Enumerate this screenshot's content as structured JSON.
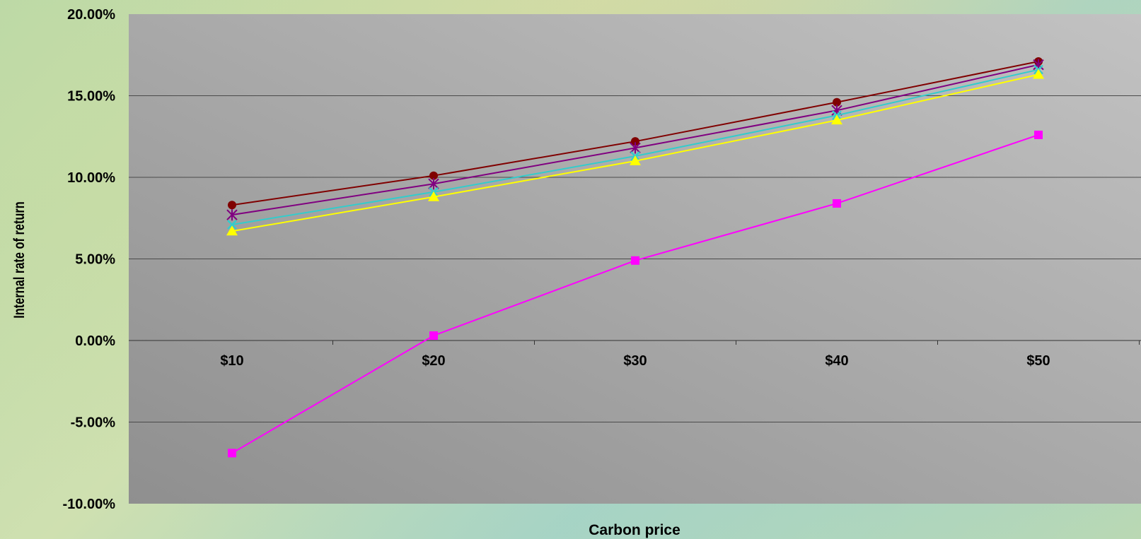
{
  "chart_data": {
    "type": "line",
    "title": "",
    "xlabel": "Carbon price",
    "ylabel": "Internal rate of return",
    "categories": [
      "$10",
      "$20",
      "$30",
      "$40",
      "$50"
    ],
    "ylim": [
      -0.1,
      0.2
    ],
    "yticks": [
      -0.1,
      -0.05,
      0.0,
      0.05,
      0.1,
      0.15,
      0.2
    ],
    "ytick_labels": [
      "-10.00%",
      "-5.00%",
      "0.00%",
      "5.00%",
      "10.00%",
      "15.00%",
      "20.00%"
    ],
    "grid": true,
    "legend": "none",
    "series": [
      {
        "color": "#800000",
        "marker": "circle",
        "values": [
          0.083,
          0.101,
          0.122,
          0.146,
          0.171
        ]
      },
      {
        "color": "#800080",
        "marker": "asterisk",
        "values": [
          0.077,
          0.096,
          0.118,
          0.141,
          0.169
        ]
      },
      {
        "color": "#33cccc",
        "marker": "x",
        "values": [
          0.071,
          0.091,
          0.113,
          0.138,
          0.166
        ]
      },
      {
        "color": "#ffff00",
        "marker": "triangle",
        "values": [
          0.067,
          0.088,
          0.11,
          0.135,
          0.163
        ]
      },
      {
        "color": "#ff00ff",
        "marker": "square",
        "values": [
          -0.069,
          0.003,
          0.049,
          0.084,
          0.126
        ]
      }
    ]
  }
}
